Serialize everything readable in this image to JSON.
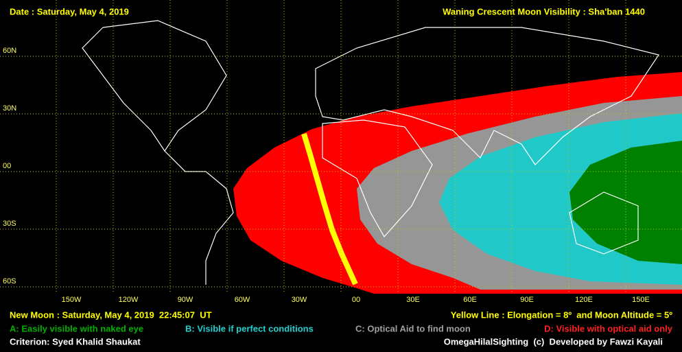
{
  "header": {
    "date": "Date : Saturday, May 4, 2019",
    "title": "Waning Crescent Moon Visibility : Sha'ban 1440"
  },
  "map": {
    "latitude_labels": [
      "60N",
      "30N",
      "00",
      "30S",
      "60S"
    ],
    "longitude_labels": [
      "150W",
      "120W",
      "90W",
      "60W",
      "30W",
      "00",
      "30E",
      "60E",
      "90E",
      "120E",
      "150E"
    ]
  },
  "footer": {
    "new_moon": "New Moon : Saturday, May 4, 2019  22:45:07  UT",
    "yellow_line": "Yellow Line : Elongation = 8º  and Moon Altitude = 5º",
    "legend": [
      "A: Easily visible with naked eye",
      "B: Visible if perfect conditions",
      "C: Optical Aid to find moon",
      "D: Visible with optical aid only"
    ],
    "criterion": "Criterion: Syed Khalid Shaukat",
    "credit": "OmegaHilalSighting  (c)  Developed by Fawzi Kayali"
  }
}
